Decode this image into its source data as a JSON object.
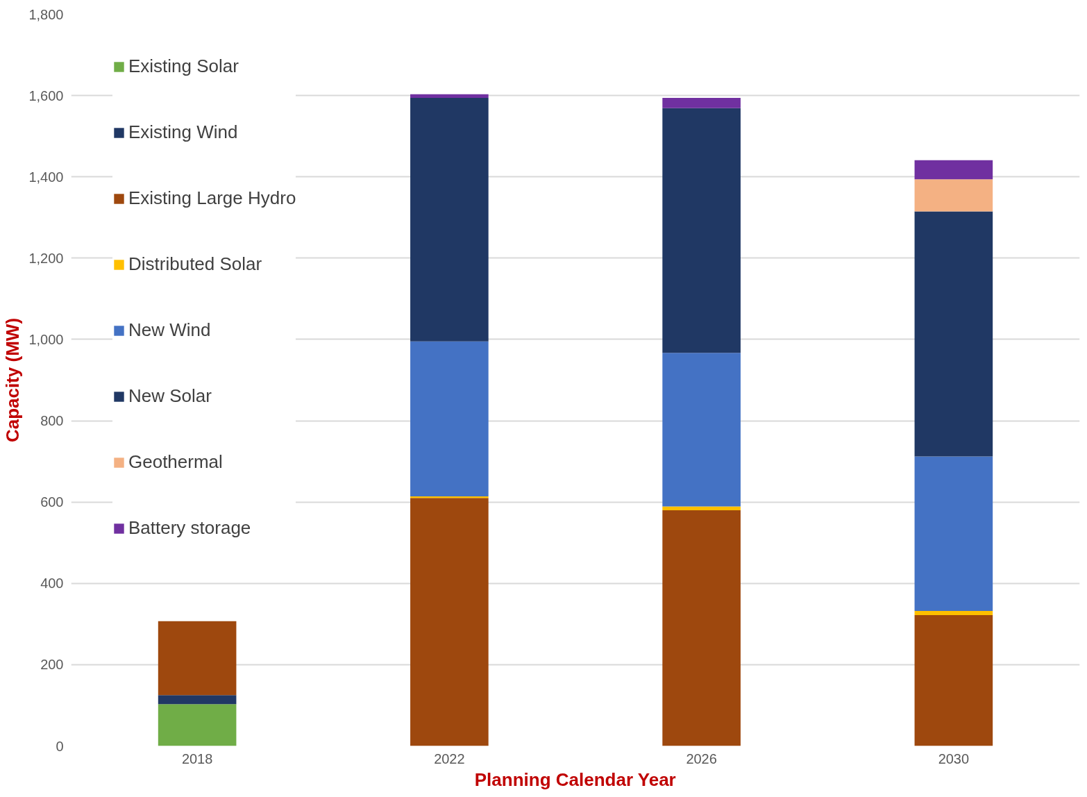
{
  "chart_data": {
    "type": "bar",
    "stacked": true,
    "xlabel": "Planning Calendar Year",
    "ylabel": "Capacity (MW)",
    "categories": [
      "2018",
      "2022",
      "2026",
      "2030"
    ],
    "series": [
      {
        "name": "Existing Solar",
        "color": "#70ad47",
        "values": [
          103,
          0,
          0,
          0
        ]
      },
      {
        "name": "Existing Wind",
        "color": "#203864",
        "values": [
          22,
          0,
          0,
          0
        ]
      },
      {
        "name": "Existing Large Hydro",
        "color": "#9e480e",
        "values": [
          182,
          610,
          580,
          322
        ]
      },
      {
        "name": "Distributed Solar",
        "color": "#ffc000",
        "values": [
          0,
          4,
          9,
          10
        ]
      },
      {
        "name": "New Wind",
        "color": "#4472c4",
        "values": [
          0,
          381,
          378,
          380
        ]
      },
      {
        "name": "New Solar",
        "color": "#203864",
        "values": [
          0,
          599,
          602,
          603
        ]
      },
      {
        "name": "Geothermal",
        "color": "#f4b183",
        "values": [
          0,
          0,
          0,
          79
        ]
      },
      {
        "name": "Battery storage",
        "color": "#7030a0",
        "values": [
          0,
          9,
          25,
          47
        ]
      }
    ],
    "ylim": [
      0,
      1800
    ],
    "yticks": [
      {
        "value": 0,
        "label": "0"
      },
      {
        "value": 200,
        "label": "200"
      },
      {
        "value": 400,
        "label": "400"
      },
      {
        "value": 600,
        "label": "600"
      },
      {
        "value": 800,
        "label": "800"
      },
      {
        "value": 1000,
        "label": "1,000"
      },
      {
        "value": 1200,
        "label": "1,200"
      },
      {
        "value": 1400,
        "label": "1,400"
      },
      {
        "value": 1600,
        "label": "1,600"
      },
      {
        "value": 1800,
        "label": "1,800"
      }
    ],
    "grid": "y",
    "legend": "top left"
  }
}
